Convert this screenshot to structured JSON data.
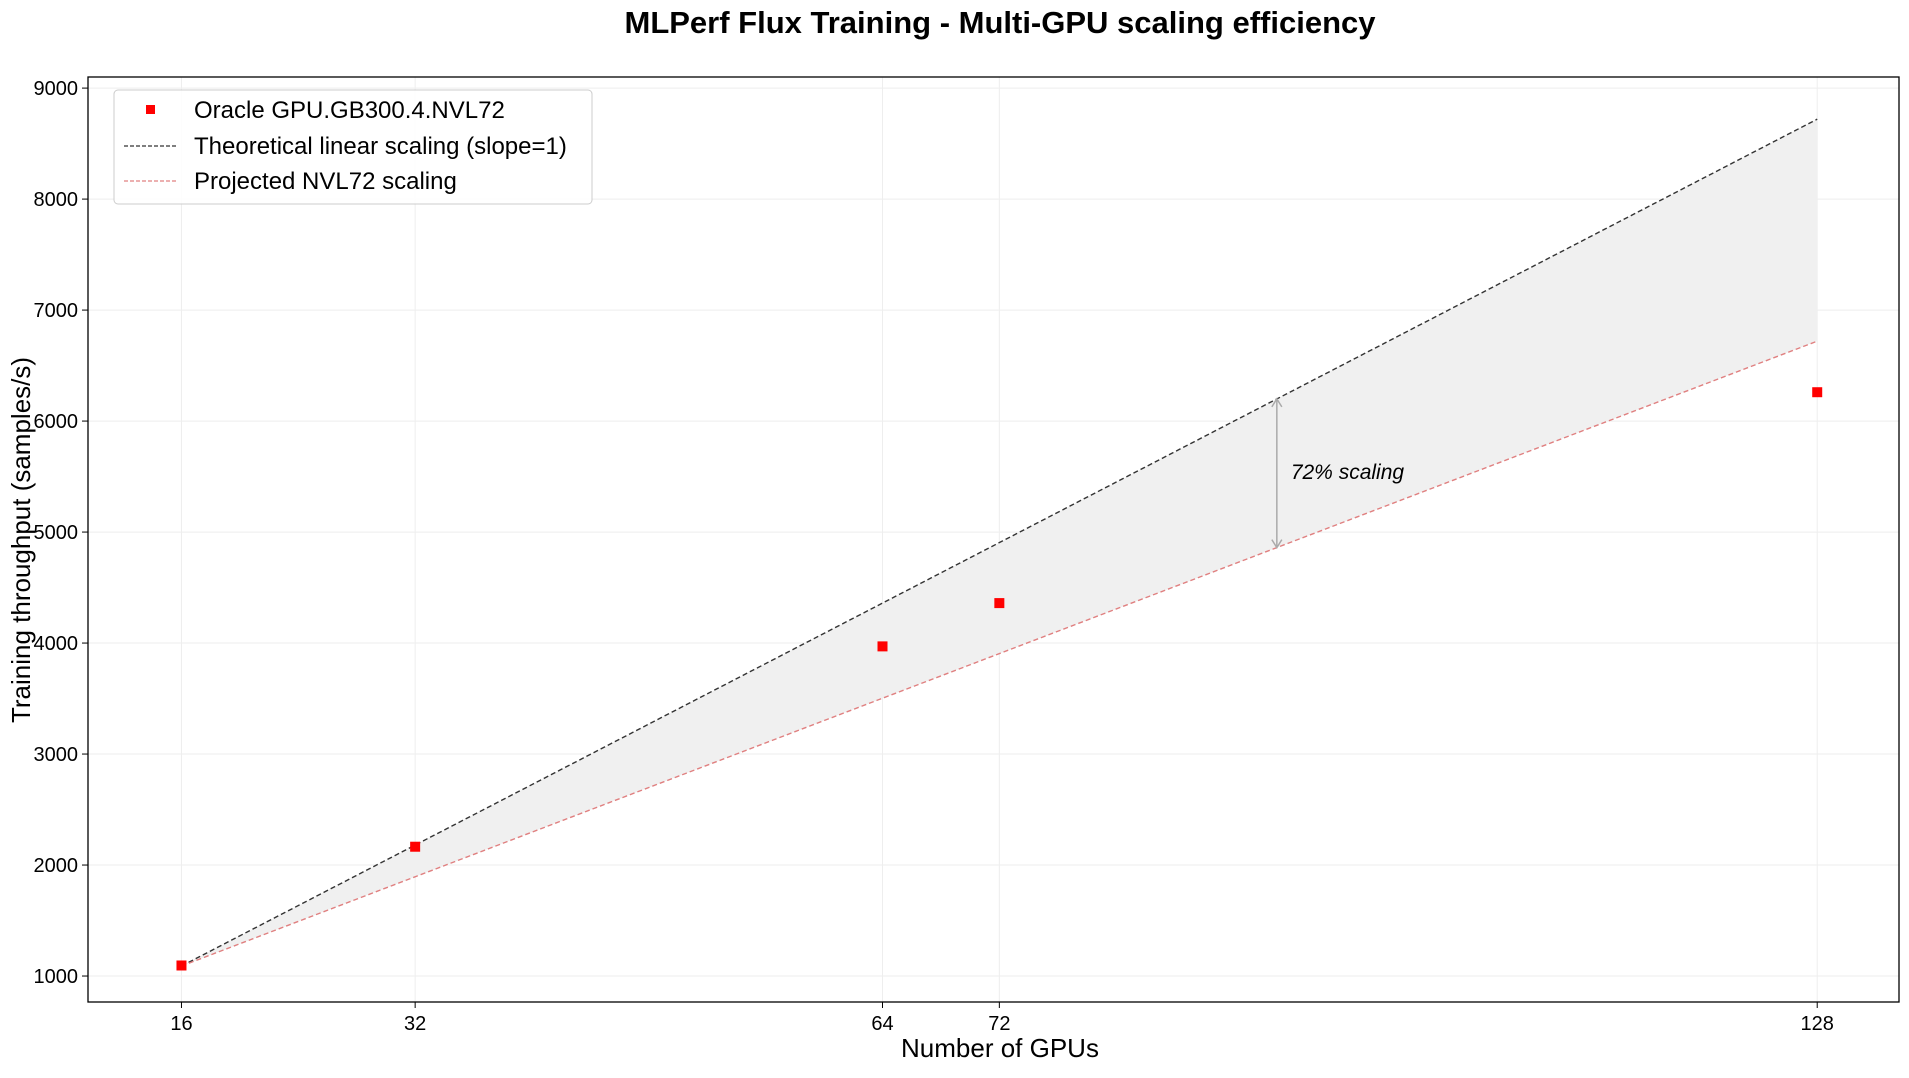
{
  "chart_data": {
    "type": "scatter",
    "title": "MLPerf Flux Training - Multi-GPU scaling efficiency",
    "xlabel": "Number of GPUs",
    "ylabel": "Training throughput (samples/s)",
    "xlim": [
      9.6,
      133.6
    ],
    "ylim": [
      766,
      9100
    ],
    "xticks": [
      16,
      32,
      64,
      72,
      128
    ],
    "yticks": [
      1000,
      2000,
      3000,
      4000,
      5000,
      6000,
      7000,
      8000,
      9000
    ],
    "grid": true,
    "legend_position": "top-left",
    "series": [
      {
        "name": "Oracle GPU.GB300.4.NVL72",
        "kind": "markers",
        "color": "#ff0000",
        "x": [
          16,
          32,
          64,
          72,
          128
        ],
        "y": [
          1095,
          2165,
          3970,
          4360,
          6260
        ]
      },
      {
        "name": "Theoretical linear scaling (slope=1)",
        "kind": "dashed-line",
        "color": "#333333",
        "x": [
          16,
          128
        ],
        "y": [
          1090,
          8720
        ]
      },
      {
        "name": "Projected NVL72 scaling",
        "kind": "dashed-line",
        "color": "#e08080",
        "x": [
          16,
          128
        ],
        "y": [
          1090,
          6720
        ]
      }
    ],
    "annotation": {
      "text": "72% scaling",
      "x": 91,
      "y_from": 4860,
      "y_to": 6200
    }
  }
}
